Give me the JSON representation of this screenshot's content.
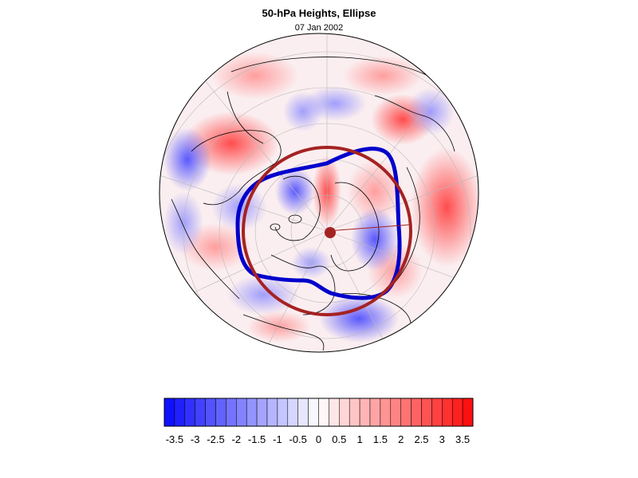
{
  "title": "50-hPa Heights, Ellipse",
  "subtitle": "07 Jan 2002",
  "colors": {
    "negative_max": "#1010ff",
    "neutral": "#ffffff",
    "positive_max": "#ff1010",
    "ellipse": "#0000cc",
    "circle": "#a52222",
    "coast": "#000000"
  },
  "colorbar": {
    "min": -3.75,
    "max": 3.75,
    "step": 0.25,
    "tick_labels": [
      "-3.5",
      "-3",
      "-2.5",
      "-2",
      "-1.5",
      "-1",
      "-0.5",
      "0",
      "0.5",
      "1",
      "1.5",
      "2",
      "2.5",
      "3",
      "3.5"
    ],
    "tick_values": [
      -3.5,
      -3,
      -2.5,
      -2,
      -1.5,
      -1,
      -0.5,
      0,
      0.5,
      1,
      1.5,
      2,
      2.5,
      3,
      3.5
    ]
  },
  "map": {
    "projection": "orthographic-polar",
    "hemisphere": "north",
    "overlays": [
      "fitted-ellipse",
      "circle-with-center-marker"
    ]
  }
}
